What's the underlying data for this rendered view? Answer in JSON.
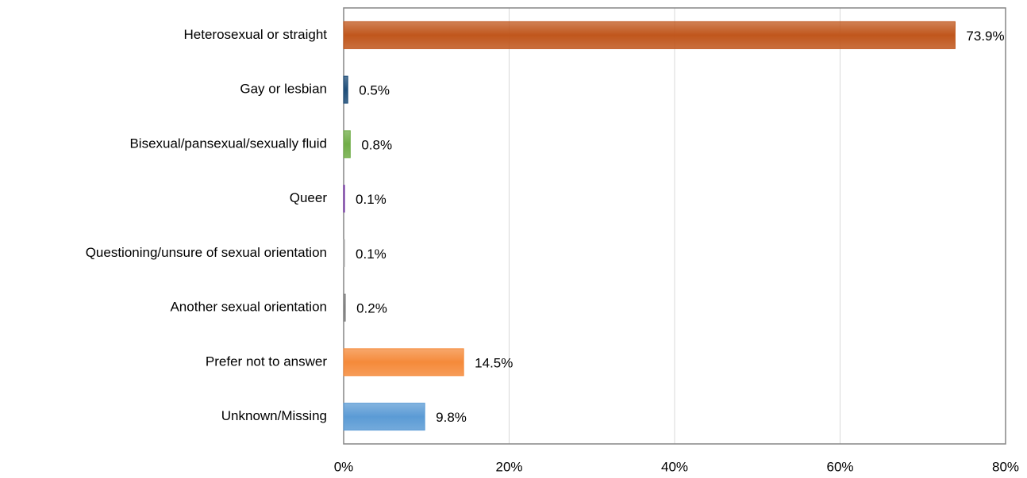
{
  "chart_data": {
    "type": "bar",
    "orientation": "horizontal",
    "categories": [
      "Heterosexual or straight",
      "Gay or lesbian",
      "Bisexual/pansexual/sexually fluid",
      "Queer",
      "Questioning/unsure of sexual orientation",
      "Another sexual orientation",
      "Prefer not to answer",
      "Unknown/Missing"
    ],
    "values": [
      73.9,
      0.5,
      0.8,
      0.1,
      0.1,
      0.2,
      14.5,
      9.8
    ],
    "value_labels": [
      "73.9%",
      "0.5%",
      "0.8%",
      "0.1%",
      "0.1%",
      "0.2%",
      "14.5%",
      "9.8%"
    ],
    "colors": [
      "#c0561c",
      "#1f4e79",
      "#70ad47",
      "#7030a0",
      "#a5a5a5",
      "#7f7f7f",
      "#f58a3a",
      "#5b9bd5"
    ],
    "xlim": [
      0,
      80
    ],
    "xticks": [
      {
        "value": 0,
        "label": "0%"
      },
      {
        "value": 20,
        "label": "20%"
      },
      {
        "value": 40,
        "label": "40%"
      },
      {
        "value": 60,
        "label": "60%"
      },
      {
        "value": 80,
        "label": "80%"
      }
    ],
    "grid": true
  }
}
